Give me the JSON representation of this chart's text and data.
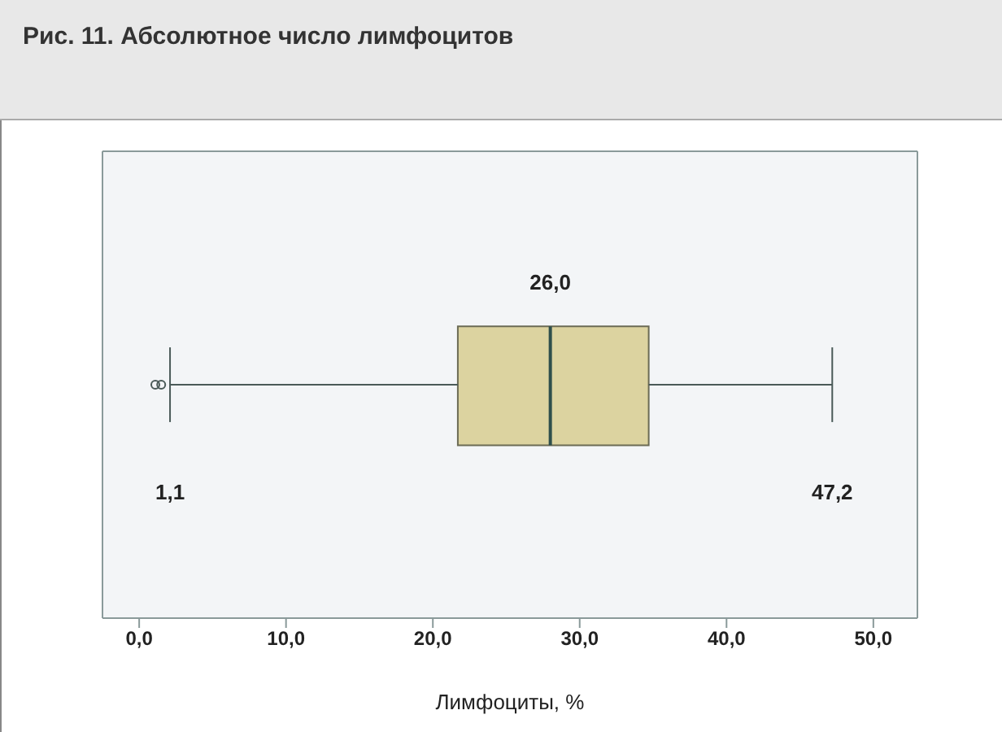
{
  "chart_data": {
    "type": "box",
    "title": "Рис. 11. Абсолютное число лимфоцитов",
    "xlabel": "Лимфоциты, %",
    "orientation": "horizontal",
    "categories": [
      null
    ],
    "boxes": [
      {
        "low": 2.1,
        "q1": 21.7,
        "median": 28.0,
        "q3": 34.7,
        "high": 47.2,
        "outliers": [
          1.1,
          1.5
        ]
      }
    ],
    "color": "#dcd3a0",
    "annotations": [
      "26,0",
      "1,1",
      "47,2"
    ],
    "xlim": [
      -2.5,
      53
    ],
    "xticks": [
      {
        "value": 0,
        "label": "0,0"
      },
      {
        "value": 10,
        "label": "10,0"
      },
      {
        "value": 20,
        "label": "20,0"
      },
      {
        "value": 30,
        "label": "30,0"
      },
      {
        "value": 40,
        "label": "40,0"
      },
      {
        "value": 50,
        "label": "50,0"
      }
    ],
    "grid": false
  }
}
